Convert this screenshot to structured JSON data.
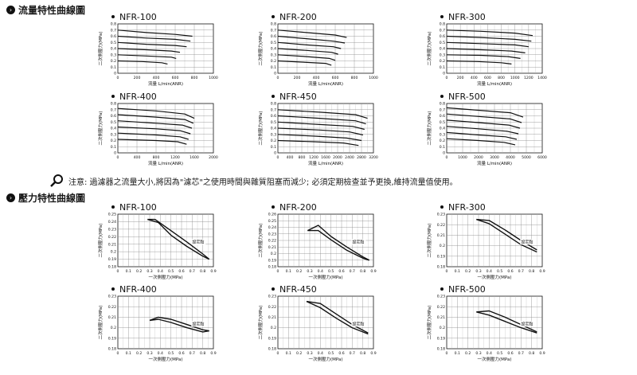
{
  "section1": {
    "title": "流量特性曲線圖"
  },
  "section2": {
    "title": "壓力特性曲線圖"
  },
  "note": {
    "text": "注意: 過濾器之流量大小,將因為\"濾芯\"之使用時間與雜質阻塞而減少; 必須定期檢查並予更換,維持流量值使用。"
  },
  "icons": {
    "section": "chevron-circle-icon",
    "note": "magnifier-icon"
  },
  "chart_data": [
    {
      "type": "line",
      "title": "NFR-100",
      "ylabel": "二次側壓力(MPa)",
      "xlabel": "流量  L/min(ANR)",
      "xlim": [
        0,
        1000
      ],
      "ylim": [
        0,
        0.8
      ],
      "xticks": [
        "0",
        "200",
        "400",
        "600",
        "800",
        "1000"
      ],
      "yticks": [
        "0",
        "0.1",
        "0.2",
        "0.3",
        "0.4",
        "0.5",
        "0.6",
        "0.7",
        "0.8"
      ],
      "series": [
        {
          "x": [
            0,
            300,
            600,
            780
          ],
          "y": [
            0.7,
            0.66,
            0.63,
            0.6
          ]
        },
        {
          "x": [
            0,
            300,
            600,
            760
          ],
          "y": [
            0.6,
            0.57,
            0.55,
            0.52
          ]
        },
        {
          "x": [
            0,
            300,
            600,
            720
          ],
          "y": [
            0.5,
            0.47,
            0.45,
            0.43
          ]
        },
        {
          "x": [
            0,
            300,
            560,
            650
          ],
          "y": [
            0.4,
            0.38,
            0.36,
            0.34
          ]
        },
        {
          "x": [
            0,
            300,
            560,
            610
          ],
          "y": [
            0.3,
            0.28,
            0.26,
            0.24
          ]
        },
        {
          "x": [
            0,
            250,
            460,
            520
          ],
          "y": [
            0.2,
            0.19,
            0.17,
            0.15
          ]
        }
      ]
    },
    {
      "type": "line",
      "title": "NFR-200",
      "ylabel": "二次側壓力(MPa)",
      "xlabel": "流量  L/min(ANR)",
      "xlim": [
        0,
        1000
      ],
      "ylim": [
        0,
        0.8
      ],
      "xticks": [
        "0",
        "200",
        "400",
        "600",
        "800",
        "1000"
      ],
      "yticks": [
        "0",
        "0.1",
        "0.2",
        "0.3",
        "0.4",
        "0.5",
        "0.6",
        "0.7",
        "0.8"
      ],
      "series": [
        {
          "x": [
            0,
            300,
            600,
            720
          ],
          "y": [
            0.7,
            0.66,
            0.62,
            0.58
          ]
        },
        {
          "x": [
            0,
            300,
            580,
            700
          ],
          "y": [
            0.6,
            0.56,
            0.52,
            0.49
          ]
        },
        {
          "x": [
            0,
            300,
            580,
            660
          ],
          "y": [
            0.5,
            0.46,
            0.43,
            0.4
          ]
        },
        {
          "x": [
            0,
            300,
            560,
            630
          ],
          "y": [
            0.4,
            0.37,
            0.34,
            0.31
          ]
        },
        {
          "x": [
            0,
            300,
            540,
            600
          ],
          "y": [
            0.3,
            0.27,
            0.24,
            0.21
          ]
        },
        {
          "x": [
            0,
            250,
            500,
            560
          ],
          "y": [
            0.2,
            0.18,
            0.16,
            0.13
          ]
        }
      ]
    },
    {
      "type": "line",
      "title": "NFR-300",
      "ylabel": "二次側壓力(MPa)",
      "xlabel": "流量  L/min(ANR)",
      "xlim": [
        0,
        1400
      ],
      "ylim": [
        0,
        0.8
      ],
      "xticks": [
        "0",
        "200",
        "400",
        "600",
        "800",
        "1000",
        "1200",
        "1400"
      ],
      "yticks": [
        "0",
        "0.1",
        "0.2",
        "0.3",
        "0.4",
        "0.5",
        "0.6",
        "0.7",
        "0.8"
      ],
      "series": [
        {
          "x": [
            0,
            500,
            1000,
            1260
          ],
          "y": [
            0.7,
            0.68,
            0.65,
            0.61
          ]
        },
        {
          "x": [
            0,
            500,
            1000,
            1240
          ],
          "y": [
            0.6,
            0.58,
            0.55,
            0.52
          ]
        },
        {
          "x": [
            0,
            500,
            1000,
            1200
          ],
          "y": [
            0.5,
            0.48,
            0.46,
            0.43
          ]
        },
        {
          "x": [
            0,
            500,
            950,
            1150
          ],
          "y": [
            0.4,
            0.38,
            0.36,
            0.33
          ]
        },
        {
          "x": [
            0,
            500,
            900,
            1080
          ],
          "y": [
            0.3,
            0.29,
            0.27,
            0.24
          ]
        },
        {
          "x": [
            0,
            450,
            800,
            950
          ],
          "y": [
            0.2,
            0.19,
            0.17,
            0.15
          ]
        }
      ]
    },
    {
      "type": "line",
      "title": "NFR-400",
      "ylabel": "二次側壓力(MPa)",
      "xlabel": "流量  L/min(ANR)",
      "xlim": [
        0,
        2000
      ],
      "ylim": [
        0,
        0.8
      ],
      "xticks": [
        "0",
        "400",
        "800",
        "1200",
        "1600",
        "2000"
      ],
      "yticks": [
        "0",
        "0.1",
        "0.2",
        "0.3",
        "0.4",
        "0.5",
        "0.6",
        "0.7",
        "0.8"
      ],
      "series": [
        {
          "x": [
            0,
            800,
            1400,
            1600
          ],
          "y": [
            0.72,
            0.68,
            0.63,
            0.56
          ]
        },
        {
          "x": [
            0,
            800,
            1400,
            1580
          ],
          "y": [
            0.62,
            0.58,
            0.54,
            0.48
          ]
        },
        {
          "x": [
            0,
            800,
            1350,
            1550
          ],
          "y": [
            0.52,
            0.48,
            0.45,
            0.4
          ]
        },
        {
          "x": [
            0,
            800,
            1300,
            1520
          ],
          "y": [
            0.42,
            0.39,
            0.36,
            0.31
          ]
        },
        {
          "x": [
            0,
            800,
            1300,
            1480
          ],
          "y": [
            0.32,
            0.29,
            0.26,
            0.22
          ]
        },
        {
          "x": [
            0,
            800,
            1250,
            1440
          ],
          "y": [
            0.22,
            0.2,
            0.18,
            0.14
          ]
        }
      ]
    },
    {
      "type": "line",
      "title": "NFR-450",
      "ylabel": "二次側壓力(MPa)",
      "xlabel": "流量  L/min(ANR)",
      "xlim": [
        0,
        3200
      ],
      "ylim": [
        0,
        0.8
      ],
      "xticks": [
        "0",
        "400",
        "800",
        "1200",
        "1600",
        "2000",
        "2400",
        "2800",
        "3200"
      ],
      "yticks": [
        "0",
        "0.1",
        "0.2",
        "0.3",
        "0.4",
        "0.5",
        "0.6",
        "0.7",
        "0.8"
      ],
      "series": [
        {
          "x": [
            0,
            1400,
            2600,
            3000
          ],
          "y": [
            0.7,
            0.66,
            0.62,
            0.56
          ]
        },
        {
          "x": [
            0,
            1400,
            2600,
            2950
          ],
          "y": [
            0.6,
            0.56,
            0.52,
            0.47
          ]
        },
        {
          "x": [
            0,
            1400,
            2500,
            2900
          ],
          "y": [
            0.5,
            0.46,
            0.43,
            0.38
          ]
        },
        {
          "x": [
            0,
            1400,
            2400,
            2850
          ],
          "y": [
            0.4,
            0.37,
            0.34,
            0.29
          ]
        },
        {
          "x": [
            0,
            1300,
            2300,
            2800
          ],
          "y": [
            0.3,
            0.27,
            0.24,
            0.2
          ]
        },
        {
          "x": [
            0,
            1200,
            2200,
            2700
          ],
          "y": [
            0.2,
            0.18,
            0.16,
            0.12
          ]
        }
      ]
    },
    {
      "type": "line",
      "title": "NFR-500",
      "ylabel": "二次側壓力(MPa)",
      "xlabel": "流量  L/min(ANR)",
      "xlim": [
        0,
        6000
      ],
      "ylim": [
        0,
        0.8
      ],
      "xticks": [
        "0",
        "1000",
        "2000",
        "3000",
        "4000",
        "5000",
        "6000"
      ],
      "yticks": [
        "0",
        "0.1",
        "0.2",
        "0.3",
        "0.4",
        "0.5",
        "0.6",
        "0.7",
        "0.8"
      ],
      "series": [
        {
          "x": [
            0,
            2000,
            4000,
            4800
          ],
          "y": [
            0.73,
            0.69,
            0.65,
            0.58
          ]
        },
        {
          "x": [
            0,
            2000,
            4000,
            4700
          ],
          "y": [
            0.63,
            0.59,
            0.55,
            0.49
          ]
        },
        {
          "x": [
            0,
            2000,
            3900,
            4600
          ],
          "y": [
            0.53,
            0.49,
            0.45,
            0.4
          ]
        },
        {
          "x": [
            0,
            2000,
            3800,
            4500
          ],
          "y": [
            0.43,
            0.39,
            0.35,
            0.31
          ]
        },
        {
          "x": [
            0,
            2000,
            3700,
            4400
          ],
          "y": [
            0.33,
            0.29,
            0.26,
            0.22
          ]
        },
        {
          "x": [
            0,
            2000,
            3600,
            4300
          ],
          "y": [
            0.23,
            0.2,
            0.17,
            0.13
          ]
        }
      ]
    },
    {
      "type": "line",
      "title": "NFR-100",
      "ylabel": "二次側壓力(MPa)",
      "xlabel": "一次側壓力(MPa)",
      "xlim": [
        0,
        0.9
      ],
      "ylim": [
        0.18,
        0.25
      ],
      "annotation": "設定點",
      "xticks": [
        "0",
        "0.1",
        "0.2",
        "0.3",
        "0.4",
        "0.5",
        "0.6",
        "0.7",
        "0.8",
        "0.9"
      ],
      "yticks": [
        "0.18",
        "0.19",
        "0.2",
        "0.21",
        "0.22",
        "0.23",
        "0.24",
        "0.25"
      ],
      "series": [
        {
          "x": [
            0.28,
            0.35,
            0.5,
            0.65,
            0.8,
            0.86
          ],
          "y": [
            0.243,
            0.243,
            0.228,
            0.213,
            0.197,
            0.19
          ]
        },
        {
          "x": [
            0.28,
            0.38,
            0.5,
            0.65,
            0.8,
            0.86
          ],
          "y": [
            0.243,
            0.239,
            0.222,
            0.207,
            0.194,
            0.19
          ]
        }
      ]
    },
    {
      "type": "line",
      "title": "NFR-200",
      "ylabel": "二次側壓力(MPa)",
      "xlabel": "一次側壓力(MPa)",
      "xlim": [
        0,
        0.9
      ],
      "ylim": [
        0.18,
        0.26
      ],
      "annotation": "設定點",
      "xticks": [
        "0",
        "0.1",
        "0.2",
        "0.3",
        "0.4",
        "0.5",
        "0.6",
        "0.7",
        "0.8",
        "0.9"
      ],
      "yticks": [
        "0.18",
        "0.19",
        "0.2",
        "0.21",
        "0.22",
        "0.23",
        "0.24",
        "0.25",
        "0.26"
      ],
      "series": [
        {
          "x": [
            0.28,
            0.38,
            0.5,
            0.65,
            0.8,
            0.86
          ],
          "y": [
            0.235,
            0.243,
            0.226,
            0.21,
            0.195,
            0.19
          ]
        },
        {
          "x": [
            0.28,
            0.38,
            0.5,
            0.65,
            0.8,
            0.86
          ],
          "y": [
            0.235,
            0.235,
            0.221,
            0.205,
            0.193,
            0.19
          ]
        }
      ]
    },
    {
      "type": "line",
      "title": "NFR-300",
      "ylabel": "二次側壓力(MPa)",
      "xlabel": "一次側壓力(MPa)",
      "xlim": [
        0,
        0.9
      ],
      "ylim": [
        0.18,
        0.23
      ],
      "annotation": "設定點",
      "xticks": [
        "0",
        "0.1",
        "0.2",
        "0.3",
        "0.4",
        "0.5",
        "0.6",
        "0.7",
        "0.8",
        "0.9"
      ],
      "yticks": [
        "0.18",
        "0.19",
        "0.2",
        "0.21",
        "0.22",
        "0.23"
      ],
      "series": [
        {
          "x": [
            0.28,
            0.4,
            0.55,
            0.7,
            0.85
          ],
          "y": [
            0.225,
            0.224,
            0.215,
            0.205,
            0.196
          ]
        },
        {
          "x": [
            0.28,
            0.4,
            0.55,
            0.7,
            0.85
          ],
          "y": [
            0.225,
            0.221,
            0.211,
            0.201,
            0.194
          ]
        }
      ]
    },
    {
      "type": "line",
      "title": "NFR-400",
      "ylabel": "二次側壓力(MPa)",
      "xlabel": "一次側壓力(MPa)",
      "xlim": [
        0,
        0.9
      ],
      "ylim": [
        0.18,
        0.23
      ],
      "annotation": "設定點",
      "xticks": [
        "0",
        "0.1",
        "0.2",
        "0.3",
        "0.4",
        "0.5",
        "0.6",
        "0.7",
        "0.8",
        "0.9"
      ],
      "yticks": [
        "0.18",
        "0.19",
        "0.2",
        "0.21",
        "0.22",
        "0.23"
      ],
      "series": [
        {
          "x": [
            0.3,
            0.38,
            0.5,
            0.65,
            0.8,
            0.86
          ],
          "y": [
            0.207,
            0.21,
            0.208,
            0.203,
            0.198,
            0.197
          ]
        },
        {
          "x": [
            0.3,
            0.38,
            0.5,
            0.65,
            0.8,
            0.86
          ],
          "y": [
            0.207,
            0.208,
            0.205,
            0.2,
            0.196,
            0.197
          ]
        }
      ]
    },
    {
      "type": "line",
      "title": "NFR-450",
      "ylabel": "二次側壓力(MPa)",
      "xlabel": "一次側壓力(MPa)",
      "xlim": [
        0,
        0.9
      ],
      "ylim": [
        0.18,
        0.23
      ],
      "annotation": "設定點",
      "xticks": [
        "0",
        "0.1",
        "0.2",
        "0.3",
        "0.4",
        "0.5",
        "0.6",
        "0.7",
        "0.8",
        "0.9"
      ],
      "yticks": [
        "0.18",
        "0.19",
        "0.2",
        "0.21",
        "0.22",
        "0.23"
      ],
      "series": [
        {
          "x": [
            0.27,
            0.4,
            0.55,
            0.7,
            0.85
          ],
          "y": [
            0.225,
            0.223,
            0.213,
            0.203,
            0.195
          ]
        },
        {
          "x": [
            0.27,
            0.4,
            0.55,
            0.7,
            0.85
          ],
          "y": [
            0.225,
            0.219,
            0.209,
            0.2,
            0.194
          ]
        }
      ]
    },
    {
      "type": "line",
      "title": "NFR-500",
      "ylabel": "二次側壓力(MPa)",
      "xlabel": "一次側壓力(MPa)",
      "xlim": [
        0,
        0.9
      ],
      "ylim": [
        0.18,
        0.23
      ],
      "annotation": "設定點",
      "xticks": [
        "0",
        "0.1",
        "0.2",
        "0.3",
        "0.4",
        "0.5",
        "0.6",
        "0.7",
        "0.8",
        "0.9"
      ],
      "yticks": [
        "0.18",
        "0.19",
        "0.2",
        "0.21",
        "0.22",
        "0.23"
      ],
      "series": [
        {
          "x": [
            0.28,
            0.4,
            0.55,
            0.7,
            0.85
          ],
          "y": [
            0.215,
            0.216,
            0.21,
            0.203,
            0.196
          ]
        },
        {
          "x": [
            0.28,
            0.4,
            0.55,
            0.7,
            0.85
          ],
          "y": [
            0.215,
            0.212,
            0.206,
            0.2,
            0.195
          ]
        }
      ]
    }
  ]
}
